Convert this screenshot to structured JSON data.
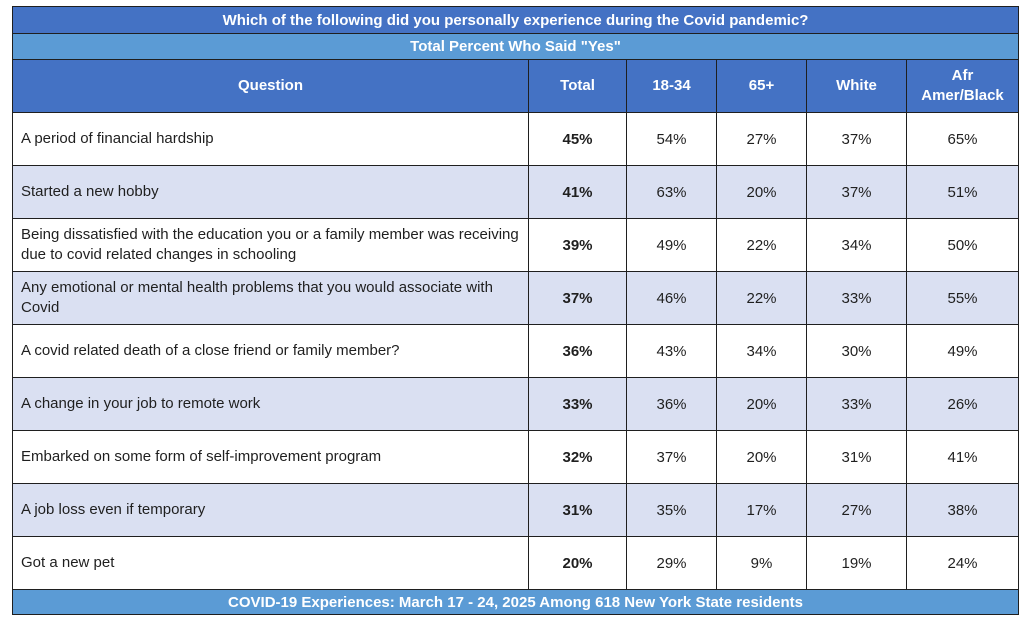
{
  "title": "Which of the following did you personally experience during the Covid pandemic?",
  "subtitle": "Total Percent Who Said \"Yes\"",
  "footer": "COVID-19 Experiences: March 17 - 24, 2025 Among 618 New York State residents",
  "colors": {
    "header_dark": "#4472c4",
    "header_light": "#5b9bd5",
    "row_alt": "#dae0f2"
  },
  "chart_data": {
    "type": "table",
    "columns": [
      "Question",
      "Total",
      "18-34",
      "65+",
      "White",
      "Afr Amer/Black"
    ],
    "rows": [
      {
        "question": "A period of financial hardship",
        "values": [
          "45%",
          "54%",
          "27%",
          "37%",
          "65%"
        ]
      },
      {
        "question": "Started a new hobby",
        "values": [
          "41%",
          "63%",
          "20%",
          "37%",
          "51%"
        ]
      },
      {
        "question": "Being dissatisfied with the education you or a family member was receiving due to covid related changes in schooling",
        "values": [
          "39%",
          "49%",
          "22%",
          "34%",
          "50%"
        ]
      },
      {
        "question": "Any emotional or mental health problems that you would associate with Covid",
        "values": [
          "37%",
          "46%",
          "22%",
          "33%",
          "55%"
        ]
      },
      {
        "question": "A covid related death of a close friend or family member?",
        "values": [
          "36%",
          "43%",
          "34%",
          "30%",
          "49%"
        ]
      },
      {
        "question": "A change in your job to remote work",
        "values": [
          "33%",
          "36%",
          "20%",
          "33%",
          "26%"
        ]
      },
      {
        "question": "Embarked on some form of self-improvement program",
        "values": [
          "32%",
          "37%",
          "20%",
          "31%",
          "41%"
        ]
      },
      {
        "question": "A job loss even if temporary",
        "values": [
          "31%",
          "35%",
          "17%",
          "27%",
          "38%"
        ]
      },
      {
        "question": "Got a new pet",
        "values": [
          "20%",
          "29%",
          "9%",
          "19%",
          "24%"
        ]
      }
    ]
  }
}
